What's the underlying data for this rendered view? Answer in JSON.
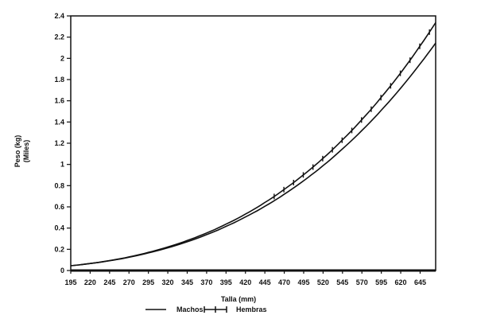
{
  "chart_data": {
    "type": "line",
    "title": "",
    "xlabel": "Talla (mm)",
    "ylabel": [
      "Peso (kg)",
      "(Miles)"
    ],
    "xlim": [
      195,
      665
    ],
    "ylim": [
      0,
      2.4
    ],
    "xticks": [
      195,
      220,
      245,
      270,
      295,
      320,
      345,
      370,
      395,
      420,
      445,
      470,
      495,
      520,
      545,
      570,
      595,
      620,
      645
    ],
    "yticks": [
      "0",
      "0.2",
      "0.4",
      "0.6",
      "0.8",
      "1",
      "1.2",
      "1.4",
      "1.6",
      "1.8",
      "2",
      "2.2",
      "2.4"
    ],
    "grid": false,
    "legend_position": "bottom",
    "x": [
      195,
      220,
      245,
      270,
      295,
      320,
      345,
      370,
      395,
      420,
      445,
      470,
      495,
      520,
      545,
      570,
      595,
      620,
      645,
      665
    ],
    "series": [
      {
        "name": "Machos",
        "marker": "none",
        "color": "#111111",
        "values": [
          0.045,
          0.066,
          0.092,
          0.125,
          0.166,
          0.214,
          0.271,
          0.338,
          0.416,
          0.505,
          0.605,
          0.719,
          0.847,
          0.989,
          1.147,
          1.32,
          1.511,
          1.72,
          1.949,
          2.144
        ]
      },
      {
        "name": "Hembras",
        "marker": "vertical-tick",
        "color": "#111111",
        "values": [
          0.045,
          0.066,
          0.094,
          0.128,
          0.171,
          0.222,
          0.283,
          0.354,
          0.437,
          0.532,
          0.641,
          0.765,
          0.904,
          1.058,
          1.232,
          1.423,
          1.634,
          1.864,
          2.119,
          2.337
        ]
      }
    ]
  }
}
